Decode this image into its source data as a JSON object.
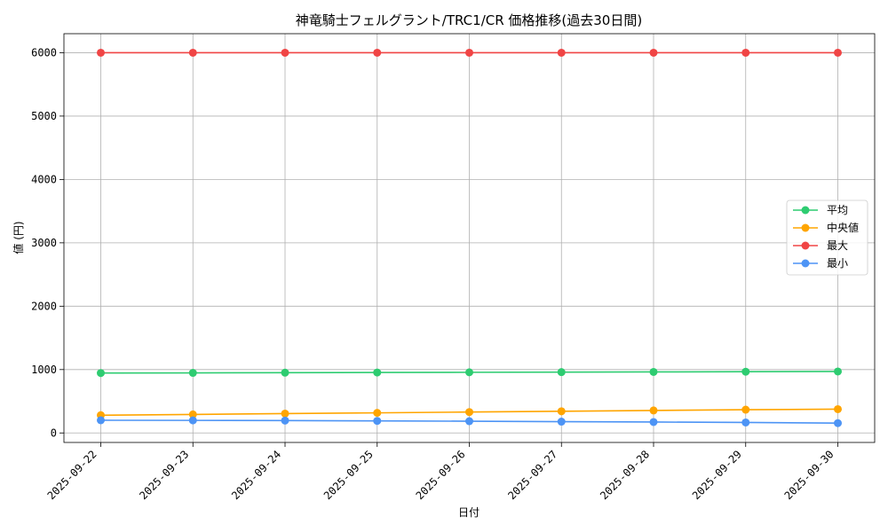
{
  "chart_data": {
    "type": "line",
    "title": "神竜騎士フェルグラント/TRC1/CR 価格推移(過去30日間)",
    "xlabel": "日付",
    "ylabel": "値 (円)",
    "categories": [
      "2025-09-22",
      "2025-09-23",
      "2025-09-24",
      "2025-09-25",
      "2025-09-26",
      "2025-09-27",
      "2025-09-28",
      "2025-09-29",
      "2025-09-30"
    ],
    "ylim": [
      -150,
      6300
    ],
    "yticks": [
      0,
      1000,
      2000,
      3000,
      4000,
      5000,
      6000
    ],
    "grid": true,
    "legend_position": "center-right",
    "series": [
      {
        "name": "平均",
        "color": "#2ecc71",
        "values": [
          945,
          948,
          951,
          954,
          957,
          960,
          963,
          966,
          970
        ]
      },
      {
        "name": "中央値",
        "color": "#ffa500",
        "values": [
          280,
          292,
          305,
          317,
          330,
          342,
          355,
          367,
          375
        ]
      },
      {
        "name": "最大",
        "color": "#f04545",
        "values": [
          6000,
          6000,
          6000,
          6000,
          6000,
          6000,
          6000,
          6000,
          6000
        ]
      },
      {
        "name": "最小",
        "color": "#4d94f5",
        "values": [
          200,
          198,
          195,
          190,
          185,
          178,
          172,
          165,
          155
        ]
      }
    ]
  }
}
